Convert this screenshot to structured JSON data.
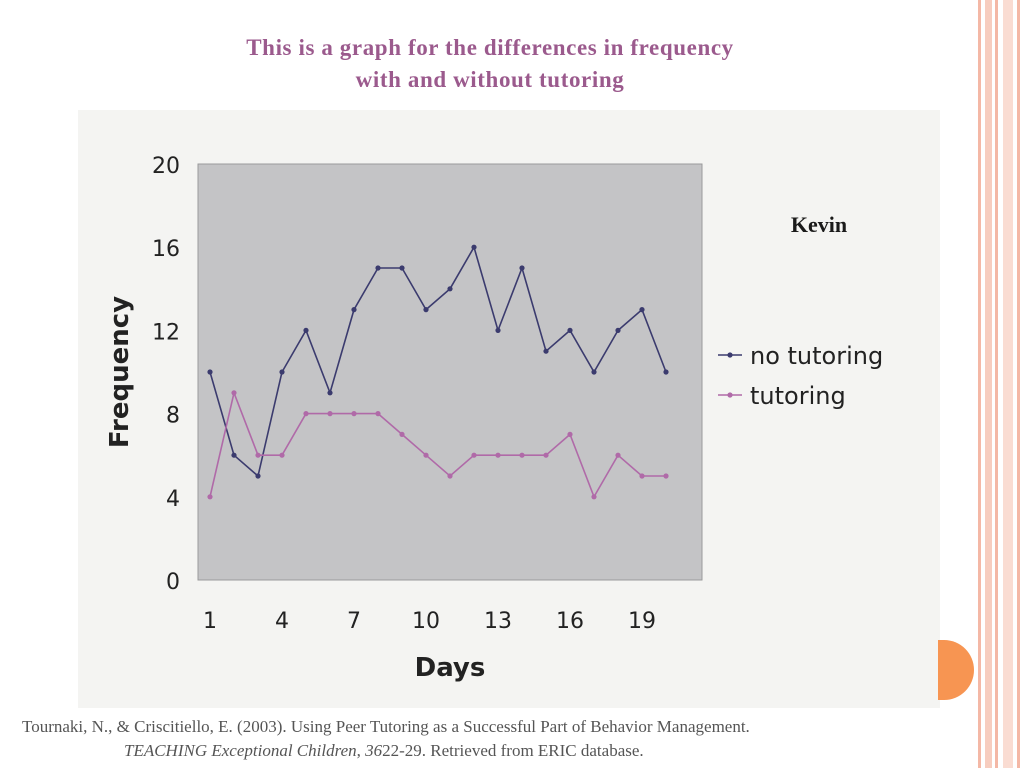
{
  "slide": {
    "title_line1": "This is a graph for the differences in frequency",
    "title_line2": "with and without tutoring",
    "citation_line1": "Tournaki, N., & Criscitiello, E. (2003). Using Peer Tutoring as a Successful Part of Behavior Management.",
    "citation_journal": "TEACHING Exceptional Children",
    "citation_sep": ", ",
    "citation_volume": "36",
    "citation_rest": "22-29. Retrieved from ERIC database."
  },
  "colors": {
    "title": "#9b5a8d",
    "plot_bg": "#c4c4c6",
    "no_tutoring": "#3b3b6e",
    "tutoring": "#b06aa8",
    "accent_orange": "#f79552",
    "stripe_pink": "#f4b8a6"
  },
  "chart_data": {
    "type": "line",
    "title": "Kevin",
    "xlabel": "Days",
    "ylabel": "Frequency",
    "x": [
      1,
      2,
      3,
      4,
      5,
      6,
      7,
      8,
      9,
      10,
      11,
      12,
      13,
      14,
      15,
      16,
      17,
      18,
      19,
      20
    ],
    "xticks": [
      "1",
      "4",
      "7",
      "10",
      "13",
      "16",
      "19"
    ],
    "yticks": [
      "0",
      "4",
      "8",
      "12",
      "16",
      "20"
    ],
    "ylim": [
      0,
      20
    ],
    "xlim": [
      0.5,
      21.5
    ],
    "grid": false,
    "legend_position": "right",
    "series": [
      {
        "name": "no tutoring",
        "values": [
          10,
          6,
          5,
          10,
          12,
          9,
          13,
          15,
          15,
          13,
          14,
          16,
          12,
          15,
          11,
          12,
          10,
          12,
          13,
          10
        ]
      },
      {
        "name": "tutoring",
        "values": [
          4,
          9,
          6,
          6,
          8,
          8,
          8,
          8,
          7,
          6,
          5,
          6,
          6,
          6,
          6,
          7,
          4,
          6,
          5,
          5
        ]
      }
    ]
  }
}
